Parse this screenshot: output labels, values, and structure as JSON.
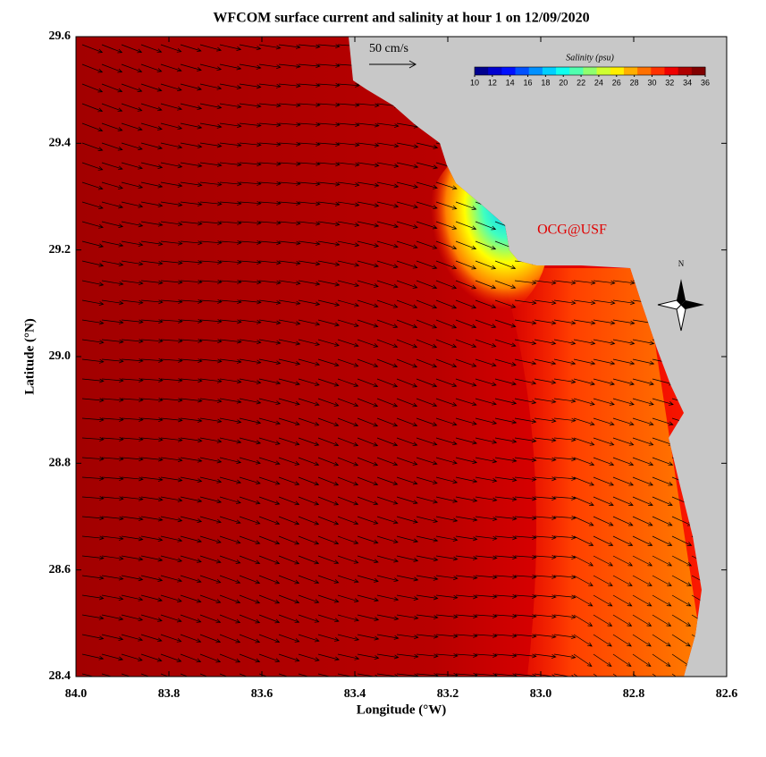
{
  "map": {
    "title": "WFCOM surface current and salinity at hour 1 on 12/09/2020",
    "xlabel": "Longitude (°W)",
    "ylabel": "Latitude (°N)",
    "xlim": [
      84.0,
      82.6
    ],
    "ylim": [
      28.4,
      29.6
    ],
    "xticks": [
      {
        "value": 84.0,
        "label": "84.0"
      },
      83.8,
      83.6,
      83.4,
      83.2,
      {
        "value": 83.0,
        "label": "83.0"
      },
      82.8,
      82.6
    ],
    "yticks": [
      28.4,
      28.6,
      28.8,
      {
        "value": 29.0,
        "label": "29.0"
      },
      29.2,
      29.4,
      29.6
    ],
    "scale_label": "50 cm/s",
    "credit": "OCG@USF",
    "compass": "N",
    "colorbar": {
      "title": "Salinity (psu)",
      "lim": [
        10,
        36
      ],
      "ticks": [
        10,
        12,
        14,
        16,
        18,
        20,
        22,
        24,
        26,
        28,
        30,
        32,
        34,
        36
      ],
      "colors": [
        "#00008f",
        "#0000cf",
        "#0010ff",
        "#0050ff",
        "#0090ff",
        "#00cfff",
        "#10ffef",
        "#50ffaf",
        "#90ff6f",
        "#cfff30",
        "#ffef00",
        "#ffaf00",
        "#ff7000",
        "#ff3000",
        "#ef0000",
        "#af0000",
        "#800000"
      ]
    }
  }
}
